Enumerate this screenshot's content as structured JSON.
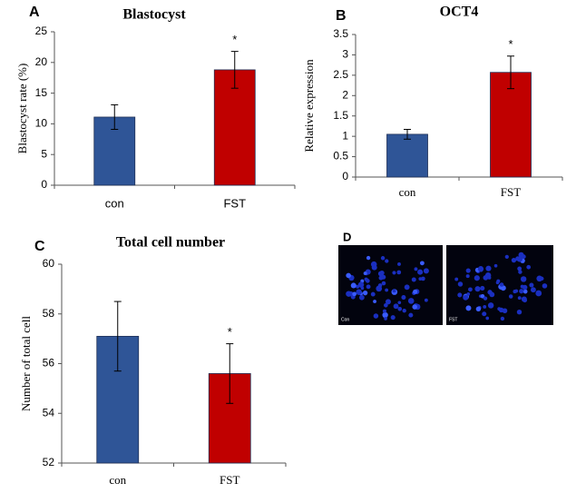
{
  "chart_data": [
    {
      "type": "bar",
      "panel_label": "A",
      "title": "Blastocyst",
      "y_label": "Blastocyst rate (%)",
      "categories": [
        "con",
        "FST"
      ],
      "values": [
        11.1,
        18.8
      ],
      "errors": [
        2.0,
        3.0
      ],
      "markers": [
        null,
        "*"
      ],
      "colors": [
        "#2f5597",
        "#c00000"
      ],
      "ylim": [
        0,
        25
      ],
      "yticks": [
        0,
        5,
        10,
        15,
        20,
        25
      ]
    },
    {
      "type": "bar",
      "panel_label": "B",
      "title": "OCT4",
      "y_label": "Relative expression",
      "categories": [
        "con",
        "FST"
      ],
      "values": [
        1.05,
        2.57
      ],
      "errors": [
        0.12,
        0.4
      ],
      "markers": [
        null,
        "*"
      ],
      "colors": [
        "#2f5597",
        "#c00000"
      ],
      "ylim": [
        0,
        3.5
      ],
      "yticks": [
        0,
        0.5,
        1,
        1.5,
        2,
        2.5,
        3,
        3.5
      ]
    },
    {
      "type": "bar",
      "panel_label": "C",
      "title": "Total cell number",
      "y_label": "Number of total cell",
      "categories": [
        "con",
        "FST"
      ],
      "values": [
        57.1,
        55.6
      ],
      "errors": [
        1.4,
        1.2
      ],
      "markers": [
        null,
        "*"
      ],
      "colors": [
        "#2f5597",
        "#c00000"
      ],
      "ylim": [
        52,
        60
      ],
      "yticks": [
        52,
        54,
        56,
        58,
        60
      ]
    }
  ],
  "panel_d": {
    "panel_label": "D",
    "images": [
      {
        "caption": "Con"
      },
      {
        "caption": "FST"
      }
    ]
  }
}
